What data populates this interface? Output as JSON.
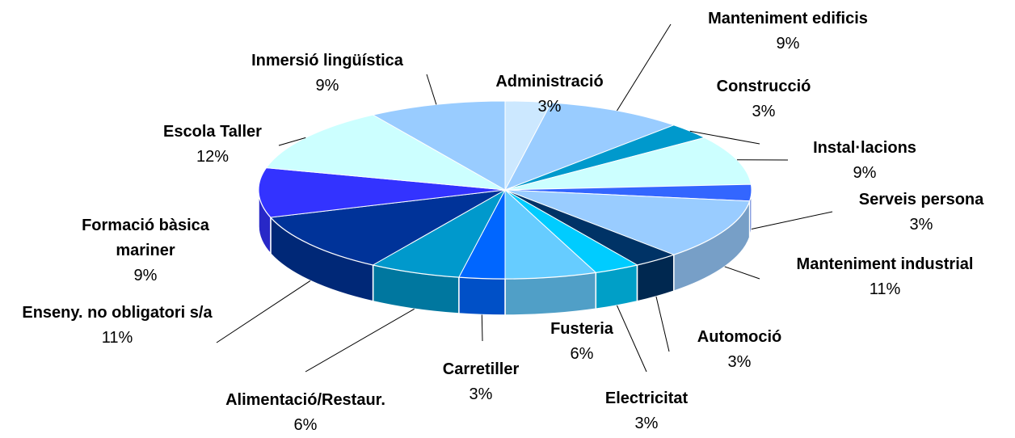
{
  "chart_data": {
    "type": "pie3d",
    "categories": [
      "Administració",
      "Manteniment edificis",
      "Construcció",
      "Instal·lacions",
      "Serveis persona",
      "Manteniment industrial",
      "Automoció",
      "Electricitat",
      "Fusteria",
      "Carretiller",
      "Alimentació/Restaur.",
      "Enseny. no obligatori s/a",
      "Formació bàsica mariner",
      "Escola Taller",
      "Inmersió lingüística"
    ],
    "values": [
      3,
      9,
      3,
      9,
      3,
      11,
      3,
      3,
      6,
      3,
      6,
      11,
      9,
      12,
      9
    ],
    "value_labels": [
      "3%",
      "9%",
      "3%",
      "9%",
      "3%",
      "11%",
      "3%",
      "3%",
      "6%",
      "3%",
      "6%",
      "11%",
      "9%",
      "12%",
      "9%"
    ],
    "colors": [
      "#cce8ff",
      "#99ccff",
      "#0099cc",
      "#ccffff",
      "#3366ff",
      "#99ccff",
      "#003366",
      "#00ccff",
      "#66ccff",
      "#0066ff",
      "#0099cc",
      "#003399",
      "#3333ff",
      "#ccffff",
      "#99ccff"
    ]
  }
}
